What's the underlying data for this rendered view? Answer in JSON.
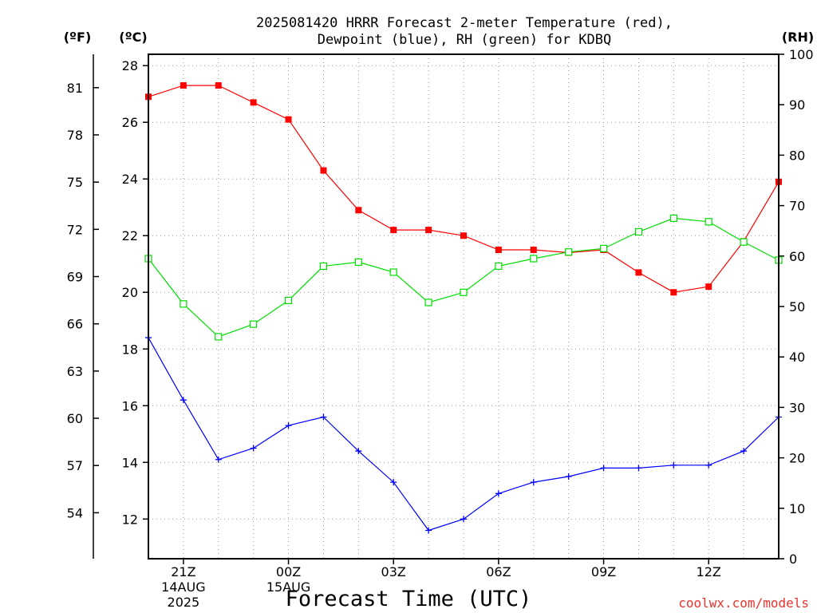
{
  "chart_data": {
    "type": "line",
    "title_line1": "2025081420 HRRR Forecast 2-meter Temperature (red),",
    "title_line2": "Dewpoint (blue), RH (green) for KDBQ",
    "xlabel": "Forecast Time (UTC)",
    "unit_f": "(ºF)",
    "unit_c": "(ºC)",
    "unit_rh": "(RH)",
    "watermark": "coolwx.com/models",
    "x": [
      20,
      21,
      22,
      23,
      24,
      25,
      26,
      27,
      28,
      29,
      30,
      31,
      32,
      33,
      34,
      35,
      36,
      37,
      38
    ],
    "xlim": [
      20,
      38
    ],
    "x_ticks": [
      {
        "x": 21,
        "label": "21Z",
        "date": "14AUG",
        "year": "2025"
      },
      {
        "x": 24,
        "label": "00Z",
        "date": "15AUG",
        "year": ""
      },
      {
        "x": 27,
        "label": "03Z",
        "date": "",
        "year": ""
      },
      {
        "x": 30,
        "label": "06Z",
        "date": "",
        "year": ""
      },
      {
        "x": 33,
        "label": "09Z",
        "date": "",
        "year": ""
      },
      {
        "x": 36,
        "label": "12Z",
        "date": "",
        "year": ""
      }
    ],
    "ylim_c": [
      10.6,
      28.4
    ],
    "y_ticks_c": [
      "12",
      "14",
      "16",
      "18",
      "20",
      "22",
      "24",
      "26",
      "28"
    ],
    "y_ticks_f": [
      "54",
      "57",
      "60",
      "63",
      "66",
      "69",
      "72",
      "75",
      "78",
      "81"
    ],
    "ylim_rh": [
      0,
      100
    ],
    "y_ticks_rh": [
      "0",
      "10",
      "20",
      "30",
      "40",
      "50",
      "60",
      "70",
      "80",
      "90",
      "100"
    ],
    "grid": true,
    "series": [
      {
        "name": "Temperature",
        "axis": "c",
        "color": "#ff0000",
        "marker": "filled-square",
        "values": [
          26.9,
          27.3,
          27.3,
          26.7,
          26.1,
          24.3,
          22.9,
          22.2,
          22.2,
          22.0,
          21.5,
          21.5,
          21.4,
          21.5,
          20.7,
          20.0,
          20.2,
          21.8,
          23.9
        ]
      },
      {
        "name": "Dewpoint",
        "axis": "c",
        "color": "#0000ff",
        "marker": "plus",
        "values": [
          18.4,
          16.2,
          14.1,
          14.5,
          15.3,
          15.6,
          14.4,
          13.3,
          11.6,
          12.0,
          12.9,
          13.3,
          13.5,
          13.8,
          13.8,
          13.9,
          13.9,
          14.4,
          15.6
        ]
      },
      {
        "name": "RH",
        "axis": "rh",
        "color": "#00dd00",
        "marker": "open-square",
        "values": [
          59.5,
          50.5,
          44.0,
          46.5,
          51.2,
          58.0,
          58.8,
          56.8,
          50.8,
          52.8,
          58.0,
          59.5,
          60.8,
          61.5,
          64.8,
          67.5,
          66.8,
          62.8,
          59.2
        ]
      }
    ]
  }
}
